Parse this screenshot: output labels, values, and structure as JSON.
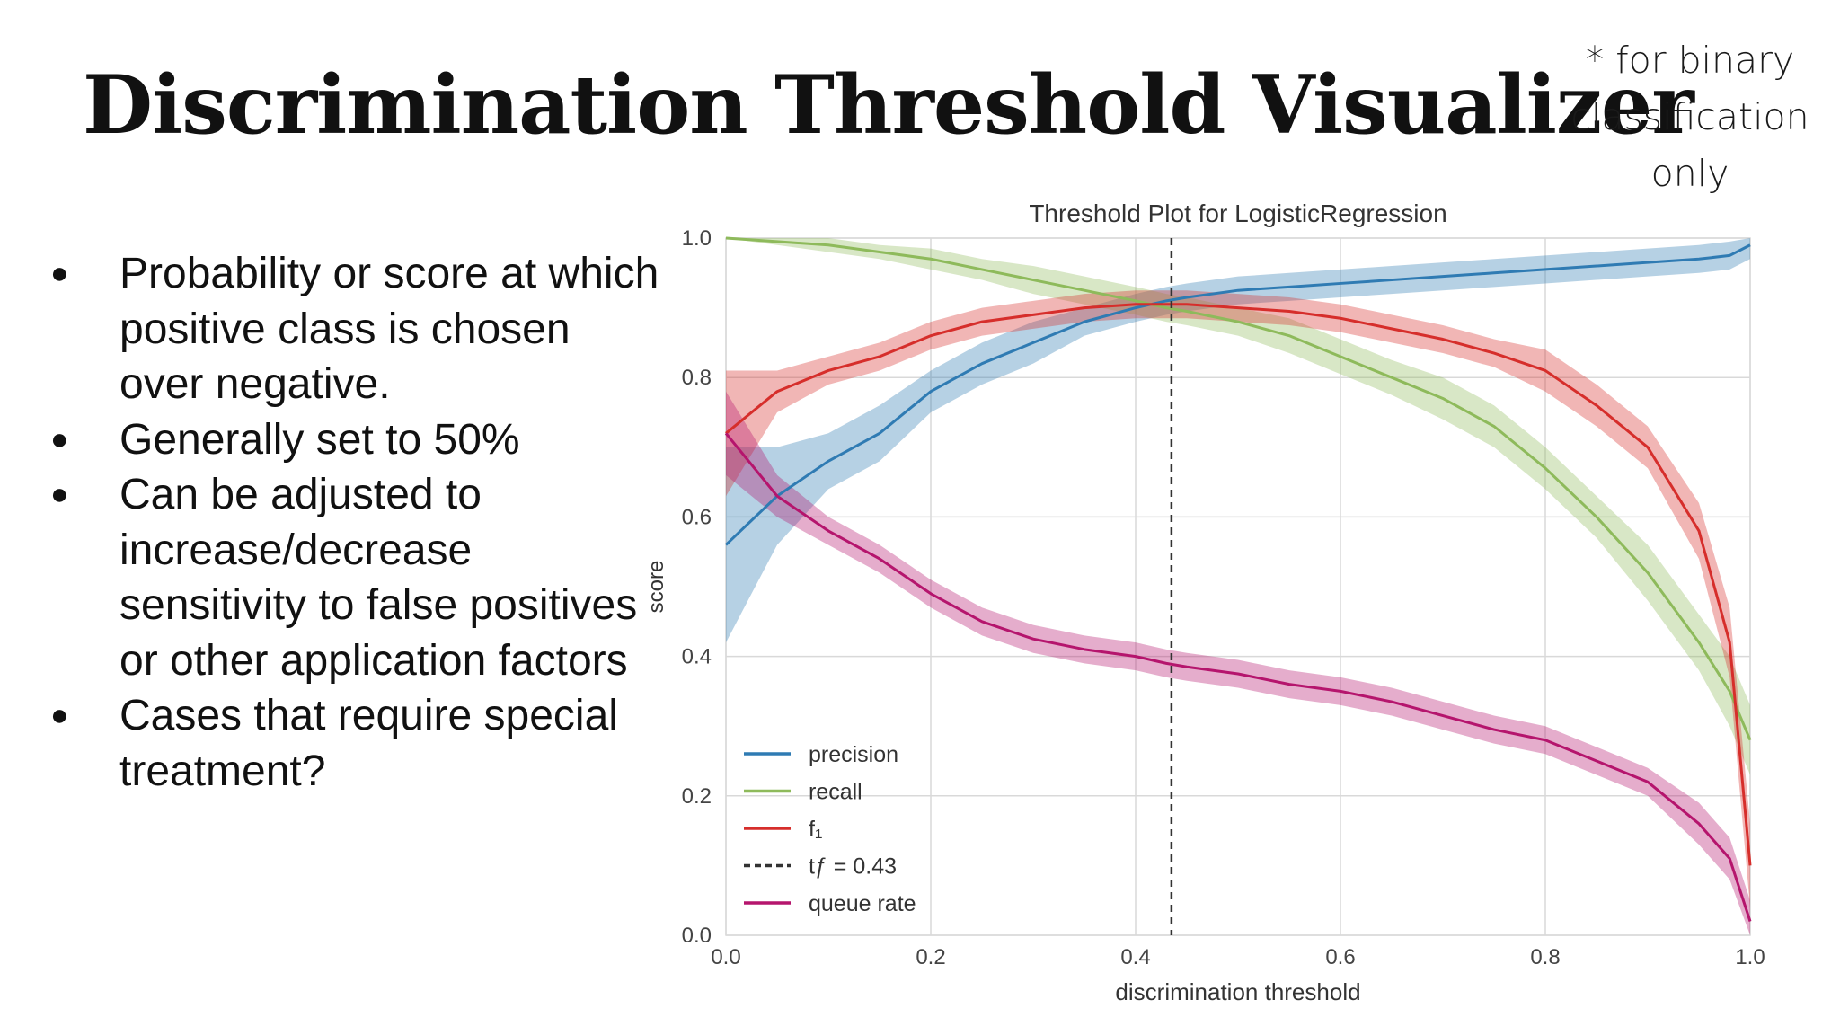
{
  "slide": {
    "title": "Discrimination Threshold Visualizer",
    "note_lines": [
      "* for binary",
      "classification",
      "only"
    ],
    "bullets": [
      "Probability or score at which positive class is chosen over negative.",
      "Generally set to 50%",
      "Can be adjusted to increase/decrease sensitivity to false positives or other application factors",
      "Cases that require special treatment?"
    ]
  },
  "chart_data": {
    "type": "line",
    "title": "Threshold Plot for LogisticRegression",
    "xlabel": "discrimination threshold",
    "ylabel": "score",
    "xlim": [
      0,
      1
    ],
    "ylim": [
      0,
      1
    ],
    "x_ticks": [
      "0.0",
      "0.2",
      "0.4",
      "0.6",
      "0.8",
      "1.0"
    ],
    "y_ticks": [
      "0.0",
      "0.2",
      "0.4",
      "0.6",
      "0.8",
      "1.0"
    ],
    "grid": true,
    "legend_position": "bottom-left",
    "x": [
      0.0,
      0.05,
      0.1,
      0.15,
      0.2,
      0.25,
      0.3,
      0.35,
      0.4,
      0.43,
      0.45,
      0.5,
      0.55,
      0.6,
      0.65,
      0.7,
      0.75,
      0.8,
      0.85,
      0.9,
      0.95,
      0.98,
      1.0
    ],
    "series": [
      {
        "name": "precision",
        "color": "#2f7bb3",
        "values": [
          0.56,
          0.63,
          0.68,
          0.72,
          0.78,
          0.82,
          0.85,
          0.88,
          0.9,
          0.91,
          0.915,
          0.925,
          0.93,
          0.935,
          0.94,
          0.945,
          0.95,
          0.955,
          0.96,
          0.965,
          0.97,
          0.975,
          0.99
        ],
        "band": [
          0.14,
          0.07,
          0.04,
          0.04,
          0.03,
          0.03,
          0.03,
          0.02,
          0.02,
          0.02,
          0.02,
          0.02,
          0.02,
          0.02,
          0.02,
          0.02,
          0.02,
          0.02,
          0.02,
          0.02,
          0.02,
          0.02,
          0.02
        ]
      },
      {
        "name": "recall",
        "color": "#8eba5b",
        "values": [
          1.0,
          0.995,
          0.99,
          0.98,
          0.97,
          0.955,
          0.94,
          0.925,
          0.91,
          0.9,
          0.895,
          0.88,
          0.86,
          0.83,
          0.8,
          0.77,
          0.73,
          0.67,
          0.6,
          0.52,
          0.42,
          0.35,
          0.28
        ],
        "band": [
          0.0,
          0.005,
          0.01,
          0.01,
          0.015,
          0.015,
          0.02,
          0.02,
          0.02,
          0.02,
          0.02,
          0.02,
          0.025,
          0.025,
          0.025,
          0.03,
          0.03,
          0.03,
          0.03,
          0.04,
          0.04,
          0.05,
          0.05
        ]
      },
      {
        "name": "f₁",
        "color": "#d62e2b",
        "values": [
          0.72,
          0.78,
          0.81,
          0.83,
          0.86,
          0.88,
          0.89,
          0.9,
          0.905,
          0.905,
          0.905,
          0.9,
          0.895,
          0.885,
          0.87,
          0.855,
          0.835,
          0.81,
          0.76,
          0.7,
          0.58,
          0.42,
          0.1
        ],
        "band": [
          0.09,
          0.03,
          0.02,
          0.02,
          0.02,
          0.02,
          0.02,
          0.02,
          0.02,
          0.02,
          0.02,
          0.02,
          0.02,
          0.02,
          0.02,
          0.02,
          0.02,
          0.03,
          0.03,
          0.03,
          0.04,
          0.05,
          0.06
        ]
      },
      {
        "name": "queue rate",
        "color": "#b5156d",
        "values": [
          0.72,
          0.63,
          0.58,
          0.54,
          0.49,
          0.45,
          0.425,
          0.41,
          0.4,
          0.39,
          0.385,
          0.375,
          0.36,
          0.35,
          0.335,
          0.315,
          0.295,
          0.28,
          0.25,
          0.22,
          0.16,
          0.11,
          0.02
        ],
        "band": [
          0.06,
          0.03,
          0.02,
          0.02,
          0.02,
          0.02,
          0.02,
          0.02,
          0.02,
          0.02,
          0.02,
          0.02,
          0.02,
          0.02,
          0.02,
          0.02,
          0.02,
          0.02,
          0.02,
          0.02,
          0.03,
          0.03,
          0.03
        ]
      }
    ],
    "threshold": {
      "label": "tƒ = 0.43",
      "value": 0.435,
      "color": "#333333"
    }
  }
}
